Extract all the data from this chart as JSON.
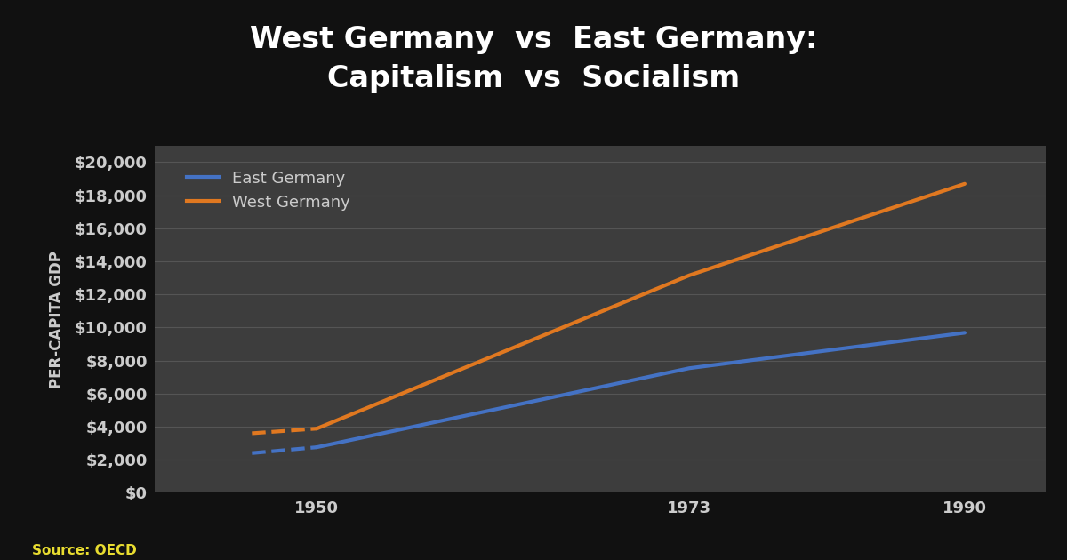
{
  "title_line1": "West Germany  vs  East Germany:",
  "title_line2": "Capitalism  vs  Socialism",
  "ylabel": "PER-CAPITA GDP",
  "source": "Source: OECD",
  "outer_bg_color": "#111111",
  "background_color": "#2e2e2e",
  "plot_bg_color": "#3d3d3d",
  "grid_color": "#555555",
  "title_color": "#ffffff",
  "axis_label_color": "#cccccc",
  "tick_label_color": "#cccccc",
  "source_color": "#e8dc30",
  "years_main": [
    1950,
    1973,
    1990
  ],
  "years_dash": [
    1946,
    1950
  ],
  "west_main": [
    3881,
    13152,
    18689
  ],
  "east_main": [
    2755,
    7536,
    9679
  ],
  "west_dash": [
    3600,
    3881
  ],
  "east_dash": [
    2400,
    2755
  ],
  "west_color": "#e07820",
  "east_color": "#4472c4",
  "west_label": "West Germany",
  "east_label": "East Germany",
  "xlim": [
    1940,
    1995
  ],
  "ylim": [
    0,
    21000
  ],
  "xticks": [
    1950,
    1973,
    1990
  ],
  "yticks": [
    0,
    2000,
    4000,
    6000,
    8000,
    10000,
    12000,
    14000,
    16000,
    18000,
    20000
  ],
  "line_width": 3.0,
  "title_fontsize": 24,
  "label_fontsize": 12,
  "tick_fontsize": 13,
  "legend_fontsize": 13,
  "source_fontsize": 11
}
